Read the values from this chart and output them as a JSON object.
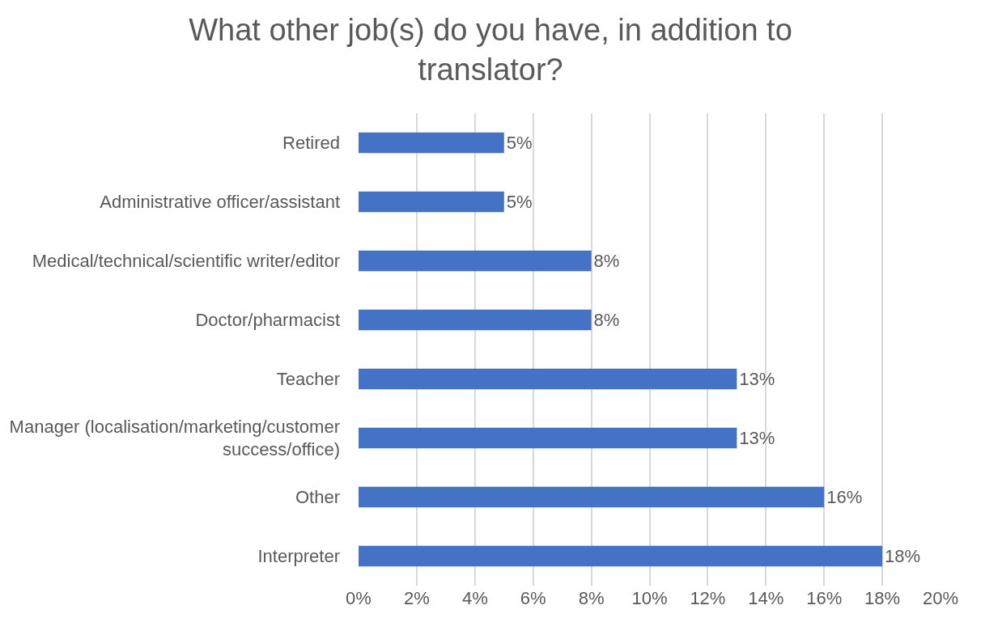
{
  "chart_data": {
    "type": "bar",
    "orientation": "horizontal",
    "title": "What other job(s) do you have, in addition to translator?",
    "categories": [
      "Retired",
      "Administrative officer/assistant",
      "Medical/technical/scientific writer/editor",
      "Doctor/pharmacist",
      "Teacher",
      "Manager (localisation/marketing/customer success/office)",
      "Other",
      "Interpreter"
    ],
    "values": [
      5,
      5,
      8,
      8,
      13,
      13,
      16,
      18
    ],
    "value_labels": [
      "5%",
      "5%",
      "8%",
      "8%",
      "13%",
      "13%",
      "16%",
      "18%"
    ],
    "color": "#4472c4",
    "xlim": [
      0,
      20
    ],
    "xticks": [
      {
        "value": 0,
        "label": "0%"
      },
      {
        "value": 2,
        "label": "2%"
      },
      {
        "value": 4,
        "label": "4%"
      },
      {
        "value": 6,
        "label": "6%"
      },
      {
        "value": 8,
        "label": "8%"
      },
      {
        "value": 10,
        "label": "10%"
      },
      {
        "value": 12,
        "label": "12%"
      },
      {
        "value": 14,
        "label": "14%"
      },
      {
        "value": 16,
        "label": "16%"
      },
      {
        "value": 18,
        "label": "18%"
      },
      {
        "value": 20,
        "label": "20%"
      }
    ],
    "grid": "x"
  }
}
